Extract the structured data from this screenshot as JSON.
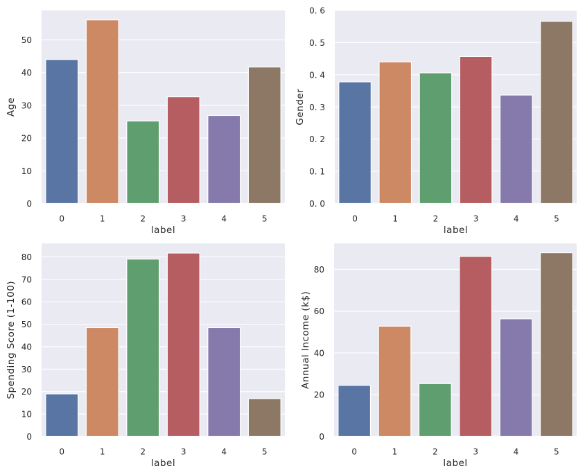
{
  "figure": {
    "background": "#ffffff",
    "axes_background": "#eaeaf2",
    "grid_color": "#ffffff",
    "palette": [
      "#5975a4",
      "#cc8963",
      "#5f9e6e",
      "#b55d60",
      "#857aab",
      "#8d7866"
    ]
  },
  "chart_data": [
    {
      "type": "bar",
      "position": "top-left",
      "title": "",
      "xlabel": "label",
      "ylabel": "Age",
      "categories": [
        "0",
        "1",
        "2",
        "3",
        "4",
        "5"
      ],
      "values": [
        44.0,
        56.1,
        25.2,
        32.6,
        26.9,
        41.7
      ],
      "ylim": [
        0,
        59
      ],
      "yticks": [
        0,
        10,
        20,
        30,
        40,
        50
      ],
      "ytick_labels": [
        "0",
        "10",
        "20",
        "30",
        "40",
        "50"
      ],
      "grid": true,
      "legend": "none"
    },
    {
      "type": "bar",
      "position": "top-right",
      "title": "",
      "xlabel": "label",
      "ylabel": "Gender",
      "categories": [
        "0",
        "1",
        "2",
        "3",
        "4",
        "5"
      ],
      "values": [
        0.378,
        0.44,
        0.406,
        0.457,
        0.337,
        0.566
      ],
      "ylim": [
        0,
        0.6
      ],
      "yticks": [
        0.0,
        0.1,
        0.2,
        0.3,
        0.4,
        0.5,
        0.6
      ],
      "ytick_labels": [
        "0. 0",
        "0. 1",
        "0. 2",
        "0. 3",
        "0. 4",
        "0. 5",
        "0. 6"
      ],
      "grid": true,
      "legend": "none"
    },
    {
      "type": "bar",
      "position": "bottom-left",
      "title": "",
      "xlabel": "label",
      "ylabel": "Spending Score (1-100)",
      "categories": [
        "0",
        "1",
        "2",
        "3",
        "4",
        "5"
      ],
      "values": [
        19.0,
        48.5,
        79.0,
        81.7,
        48.5,
        16.9
      ],
      "ylim": [
        0,
        86
      ],
      "yticks": [
        0,
        10,
        20,
        30,
        40,
        50,
        60,
        70,
        80
      ],
      "ytick_labels": [
        "0",
        "10",
        "20",
        "30",
        "40",
        "50",
        "60",
        "70",
        "80"
      ],
      "grid": true,
      "legend": "none"
    },
    {
      "type": "bar",
      "position": "bottom-right",
      "title": "",
      "xlabel": "label",
      "ylabel": "Annual Income (k$)",
      "categories": [
        "0",
        "1",
        "2",
        "3",
        "4",
        "5"
      ],
      "values": [
        24.5,
        52.8,
        25.3,
        86.2,
        56.3,
        87.9
      ],
      "ylim": [
        0,
        92.4
      ],
      "yticks": [
        0,
        20,
        40,
        60,
        80
      ],
      "ytick_labels": [
        "0",
        "20",
        "40",
        "60",
        "80"
      ],
      "grid": true,
      "legend": "none"
    }
  ]
}
